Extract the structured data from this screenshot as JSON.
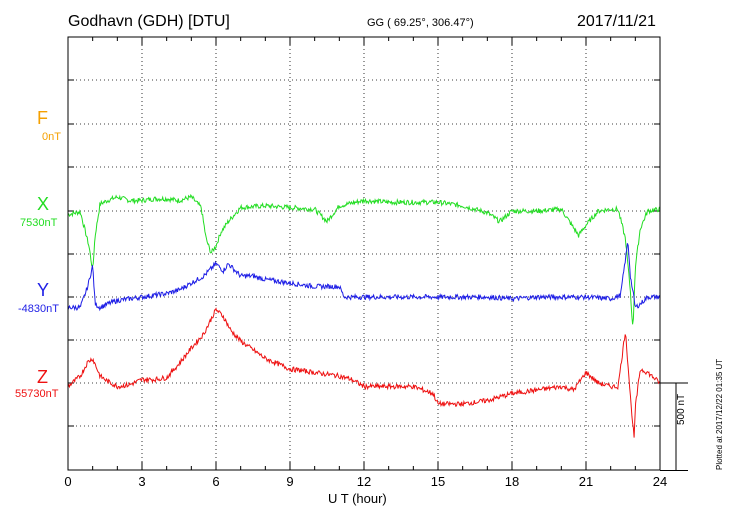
{
  "header": {
    "station": "Godhavn (GDH)  [DTU]",
    "coords": "GG ( 69.25°, 306.47°)",
    "date": "2017/11/21"
  },
  "plotted_note": "Plotted at 2017/12/22 01:35 UT",
  "chart_data": {
    "type": "line",
    "xlabel": "U T (hour)",
    "xlim": [
      0,
      24
    ],
    "xticks": [
      "0",
      "3",
      "6",
      "9",
      "12",
      "15",
      "18",
      "21",
      "24"
    ],
    "scale_bar_label": "500 nT",
    "scale_bar_nT": 500,
    "grid": true,
    "series": [
      {
        "name": "F",
        "baseline_label": "0nT",
        "baseline_nT": 0,
        "color": "#f5a000",
        "values": []
      },
      {
        "name": "X",
        "baseline_label": "7530nT",
        "baseline_nT": 7530,
        "color": "#22dd22",
        "x": [
          0,
          0.5,
          0.85,
          1.0,
          1.1,
          1.3,
          1.6,
          2.0,
          2.5,
          3.0,
          3.5,
          4.0,
          4.5,
          5.0,
          5.4,
          5.6,
          5.8,
          6.0,
          6.2,
          6.5,
          7.0,
          8.0,
          9.0,
          10.0,
          10.5,
          11.0,
          12.0,
          13.0,
          14.0,
          15.0,
          16.0,
          17.0,
          17.5,
          18.0,
          19.0,
          20.0,
          20.7,
          21.0,
          21.5,
          22.0,
          22.3,
          22.6,
          22.8,
          22.9,
          23.0,
          23.2,
          23.5,
          24.0
        ],
        "values": [
          -20,
          -5,
          -200,
          -340,
          -140,
          40,
          60,
          80,
          60,
          60,
          70,
          70,
          60,
          80,
          20,
          -160,
          -240,
          -200,
          -120,
          -60,
          20,
          30,
          20,
          10,
          -60,
          30,
          60,
          50,
          50,
          50,
          30,
          -10,
          -60,
          0,
          0,
          10,
          -140,
          -80,
          0,
          10,
          10,
          -160,
          -460,
          -680,
          -320,
          -100,
          0,
          10
        ]
      },
      {
        "name": "Y",
        "baseline_label": "-4830nT",
        "baseline_nT": -4830,
        "color": "#1e1ee6",
        "x": [
          0,
          0.5,
          0.8,
          1.0,
          1.1,
          1.3,
          1.6,
          2.0,
          3.0,
          4.0,
          4.5,
          5.0,
          5.5,
          6.0,
          6.3,
          6.5,
          7.0,
          7.5,
          8.0,
          9.0,
          10.0,
          11.0,
          11.2,
          12.0,
          13.0,
          14.0,
          15.0,
          16.0,
          17.0,
          18.0,
          19.0,
          20.0,
          21.0,
          22.0,
          22.4,
          22.7,
          22.8,
          23.0,
          23.2,
          23.5,
          24.0
        ],
        "values": [
          -60,
          -60,
          60,
          180,
          -40,
          -60,
          -40,
          -20,
          0,
          20,
          40,
          80,
          120,
          190,
          150,
          190,
          120,
          120,
          100,
          80,
          60,
          60,
          0,
          0,
          0,
          0,
          0,
          0,
          0,
          -10,
          0,
          0,
          0,
          -10,
          10,
          320,
          120,
          -60,
          -40,
          0,
          0
        ]
      },
      {
        "name": "Z",
        "baseline_label": "55730nT",
        "baseline_nT": 55730,
        "color": "#ee1111",
        "x": [
          0,
          0.5,
          0.8,
          1.0,
          1.3,
          1.6,
          2.0,
          2.5,
          3.0,
          3.5,
          4.0,
          4.5,
          5.0,
          5.5,
          6.0,
          6.3,
          6.6,
          7.0,
          7.5,
          8.0,
          9.0,
          10.0,
          11.0,
          11.5,
          12.0,
          13.0,
          14.0,
          14.8,
          15.0,
          16.0,
          17.0,
          18.0,
          19.0,
          20.0,
          20.5,
          21.0,
          21.5,
          22.0,
          22.3,
          22.6,
          22.8,
          22.95,
          23.0,
          23.2,
          23.5,
          24.0
        ],
        "values": [
          -20,
          40,
          120,
          140,
          40,
          10,
          -20,
          -10,
          20,
          20,
          30,
          110,
          200,
          280,
          420,
          380,
          300,
          240,
          190,
          140,
          80,
          60,
          40,
          20,
          -20,
          -20,
          -20,
          -60,
          -120,
          -120,
          -100,
          -60,
          -40,
          -20,
          -40,
          60,
          0,
          -20,
          -20,
          300,
          -80,
          -320,
          -140,
          80,
          60,
          0
        ]
      }
    ]
  }
}
